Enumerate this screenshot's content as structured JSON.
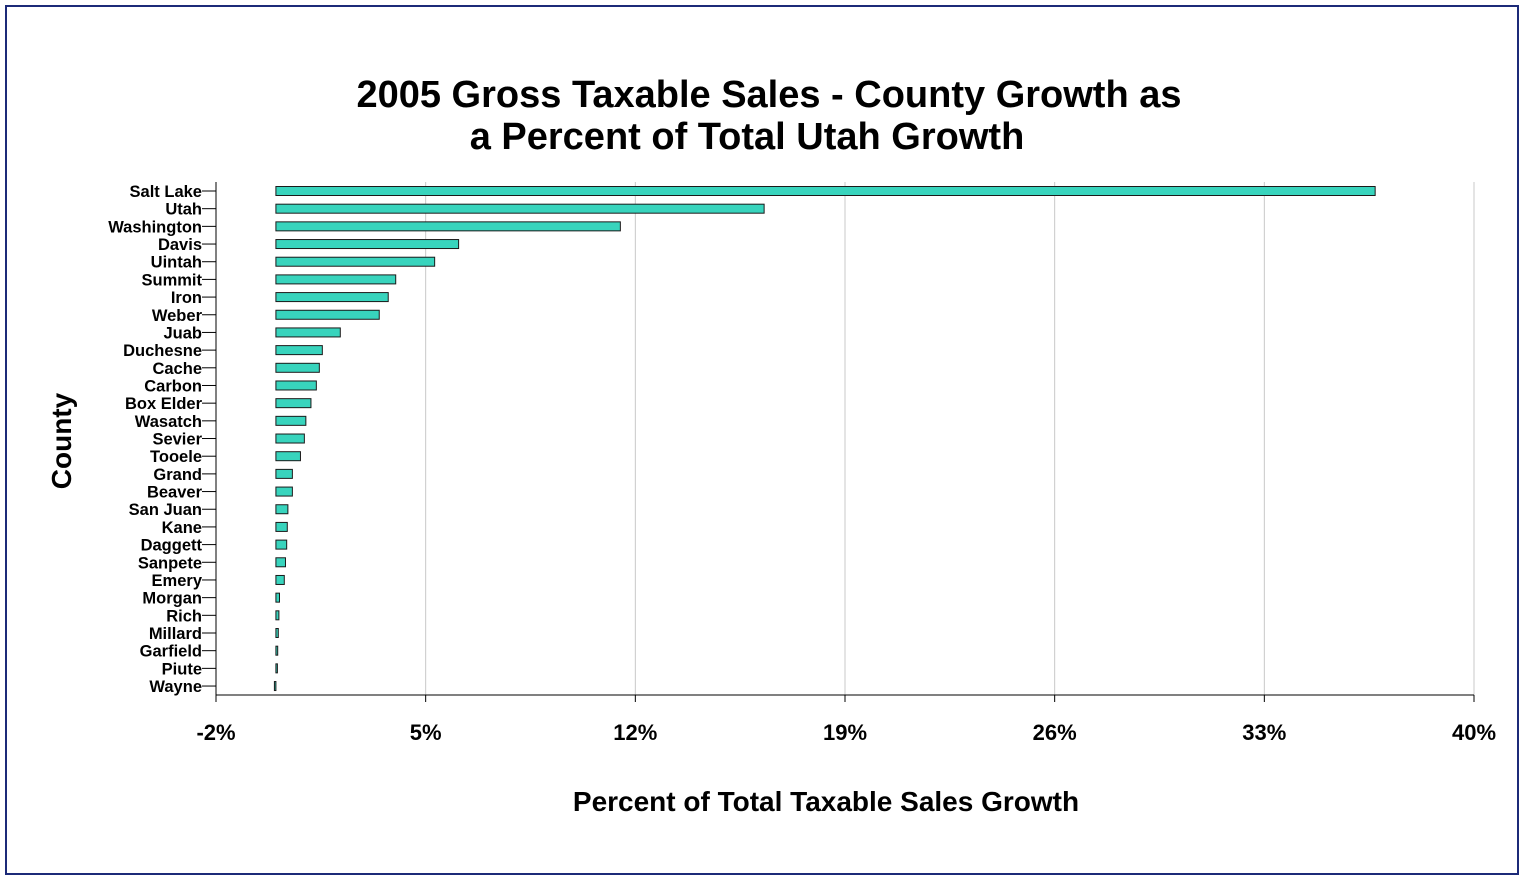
{
  "chart_data": {
    "type": "bar",
    "orientation": "horizontal",
    "title": [
      "2005 Gross Taxable Sales - County Growth as",
      "a Percent of Total Utah Growth"
    ],
    "xlabel": "Percent of Total Taxable Sales Growth",
    "ylabel": "County",
    "xlim": [
      -2,
      40
    ],
    "xticks": [
      -2,
      5,
      12,
      19,
      26,
      33,
      40
    ],
    "xtick_labels": [
      "-2%",
      "5%",
      "12%",
      "19%",
      "26%",
      "33%",
      "40%"
    ],
    "grid": "vertical",
    "categories": [
      "Salt Lake",
      "Utah",
      "Washington",
      "Davis",
      "Uintah",
      "Summit",
      "Iron",
      "Weber",
      "Juab",
      "Duchesne",
      "Cache",
      "Carbon",
      "Box Elder",
      "Wasatch",
      "Sevier",
      "Tooele",
      "Grand",
      "Beaver",
      "San Juan",
      "Kane",
      "Daggett",
      "Sanpete",
      "Emery",
      "Morgan",
      "Rich",
      "Millard",
      "Garfield",
      "Piute",
      "Wayne"
    ],
    "values": [
      36.7,
      16.3,
      11.5,
      6.1,
      5.3,
      4.0,
      3.75,
      3.45,
      2.15,
      1.55,
      1.45,
      1.35,
      1.17,
      1.0,
      0.95,
      0.82,
      0.55,
      0.55,
      0.4,
      0.38,
      0.36,
      0.32,
      0.28,
      0.12,
      0.1,
      0.08,
      0.06,
      0.02,
      -0.05
    ],
    "colors": {
      "bar_fill": "#38d4bd",
      "bar_stroke": "#1a1a1a",
      "grid": "#c8c8c8",
      "frame": "#1c2a78"
    }
  }
}
